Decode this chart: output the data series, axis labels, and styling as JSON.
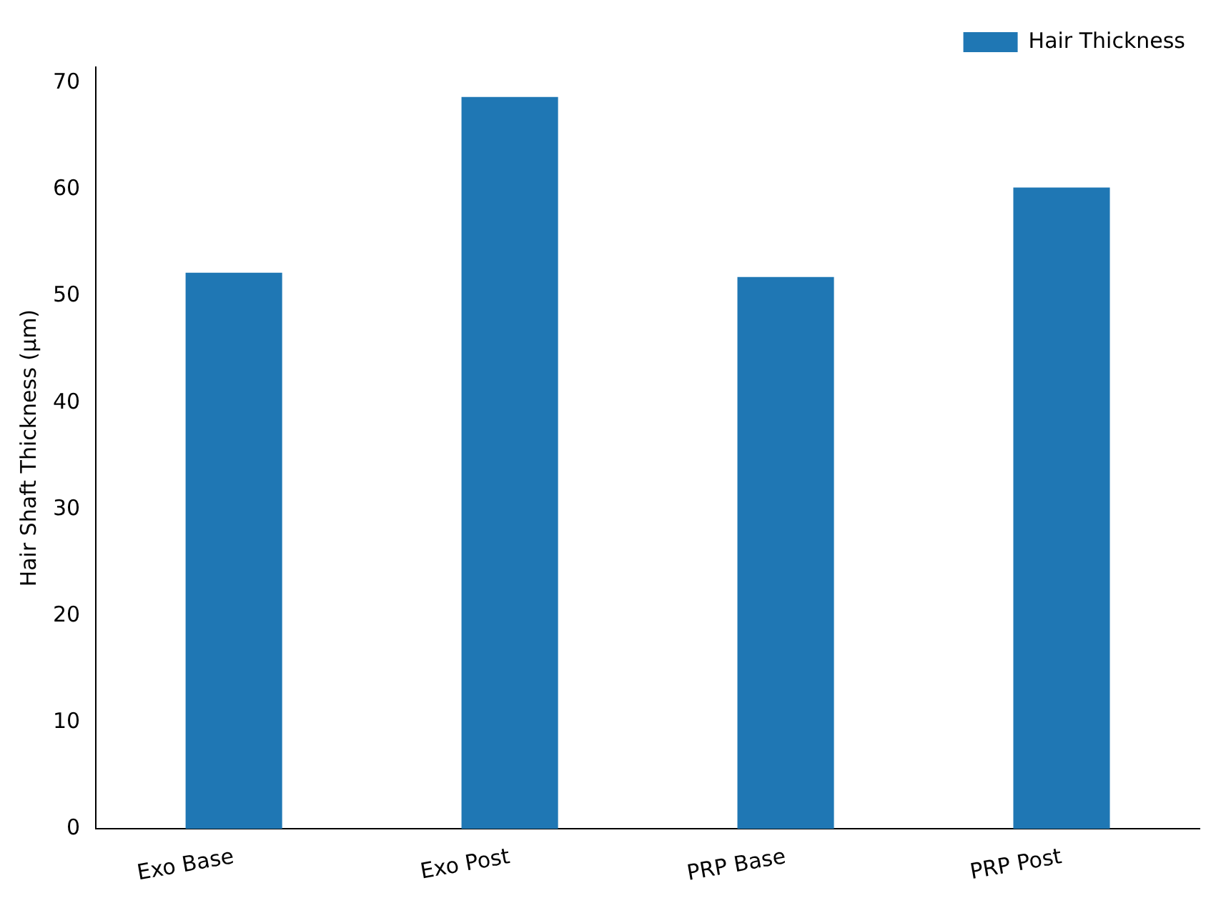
{
  "chart_data": {
    "type": "bar",
    "ylabel": "Hair Shaft Thickness (µm)",
    "categories": [
      "Exo Base",
      "Exo Post",
      "PRP Base",
      "PRP Post"
    ],
    "series": [
      {
        "name": "Hair Thickness",
        "color": "#1f77b4",
        "values": [
          52.2,
          68.7,
          51.8,
          60.2
        ]
      }
    ],
    "ylim": [
      0,
      71.5
    ],
    "yticks": [
      0,
      10,
      20,
      30,
      40,
      50,
      60,
      70
    ],
    "legend": "top right"
  }
}
